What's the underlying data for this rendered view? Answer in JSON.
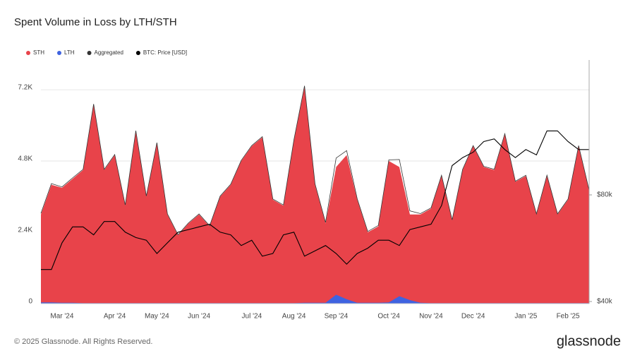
{
  "chart_data": {
    "type": "area",
    "title": "Spent Volume in Loss by LTH/STH",
    "footer": "© 2025 Glassnode. All Rights Reserved.",
    "brand": "glassnode",
    "categories": [
      null,
      null,
      "Mar '24",
      null,
      null,
      null,
      null,
      "Apr '24",
      null,
      null,
      null,
      "May '24",
      null,
      null,
      null,
      "Jun '24",
      null,
      null,
      null,
      null,
      "Jul '24",
      null,
      null,
      null,
      "Aug '24",
      null,
      null,
      null,
      "Sep '24",
      null,
      null,
      null,
      null,
      "Oct '24",
      null,
      null,
      null,
      "Nov '24",
      null,
      null,
      null,
      "Dec '24",
      null,
      null,
      null,
      null,
      "Jan '25",
      null,
      null,
      null,
      "Feb '25",
      null,
      null
    ],
    "series": [
      {
        "name": "STH",
        "color": "#e8434a",
        "values": [
          3000,
          4000,
          3900,
          4200,
          4500,
          6700,
          4500,
          5000,
          3300,
          5800,
          3600,
          5400,
          3000,
          2300,
          2700,
          3000,
          2600,
          3600,
          4000,
          4800,
          5300,
          5600,
          3500,
          3300,
          5500,
          7300,
          4000,
          2700,
          4600,
          5000,
          3500,
          2400,
          2600,
          4800,
          4600,
          3000,
          3000,
          3200,
          4300,
          2800,
          4500,
          5300,
          4600,
          4500,
          5700,
          4100,
          4300,
          3000,
          4300,
          3000,
          3500,
          5300,
          3800
        ]
      },
      {
        "name": "LTH",
        "color": "#3f63e0",
        "values": [
          40,
          40,
          30,
          30,
          20,
          20,
          20,
          20,
          20,
          20,
          20,
          20,
          20,
          20,
          20,
          20,
          20,
          20,
          20,
          20,
          20,
          20,
          20,
          20,
          20,
          30,
          30,
          30,
          300,
          150,
          30,
          30,
          30,
          40,
          250,
          120,
          30,
          20,
          20,
          20,
          20,
          20,
          20,
          20,
          20,
          20,
          20,
          20,
          20,
          20,
          20,
          20,
          20
        ]
      },
      {
        "name": "Aggregated",
        "color": "#333333",
        "values": [
          3040,
          4040,
          3930,
          4230,
          4520,
          6720,
          4520,
          5020,
          3320,
          5820,
          3620,
          5420,
          3020,
          2320,
          2720,
          3020,
          2620,
          3620,
          4020,
          4820,
          5320,
          5620,
          3520,
          3320,
          5520,
          7330,
          4030,
          2730,
          4900,
          5150,
          3530,
          2430,
          2630,
          4840,
          4850,
          3120,
          3030,
          3220,
          4320,
          2820,
          4520,
          5320,
          4620,
          4520,
          5720,
          4120,
          4320,
          3020,
          4320,
          3020,
          3520,
          5320,
          3820
        ]
      },
      {
        "name": "BTC: Price [USD]",
        "color": "#000000",
        "axis": "y2",
        "values": [
          52000,
          52000,
          62000,
          68000,
          68000,
          65000,
          70000,
          70000,
          66000,
          64000,
          63000,
          58000,
          62000,
          66000,
          67000,
          68000,
          69000,
          66000,
          65000,
          61000,
          63000,
          57000,
          58000,
          65000,
          66000,
          57000,
          59000,
          61000,
          58000,
          54000,
          58000,
          60000,
          63000,
          63000,
          61000,
          67000,
          68000,
          69000,
          76000,
          91000,
          94000,
          96000,
          100000,
          101000,
          97000,
          94000,
          97000,
          95000,
          104000,
          104000,
          100000,
          97000,
          97000
        ]
      }
    ],
    "ylim": [
      0,
      8200
    ],
    "yticks": [
      0,
      {
        "value": 2400,
        "label": "2.4K"
      },
      {
        "value": 4800,
        "label": "4.8K"
      },
      {
        "value": 7200,
        "label": "7.2K"
      }
    ],
    "y2lim": [
      39200,
      130600
    ],
    "y2ticks": [
      {
        "value": 40000,
        "label": "$40k"
      },
      {
        "value": 80000,
        "label": "$80k"
      }
    ],
    "legend": "top-left"
  }
}
